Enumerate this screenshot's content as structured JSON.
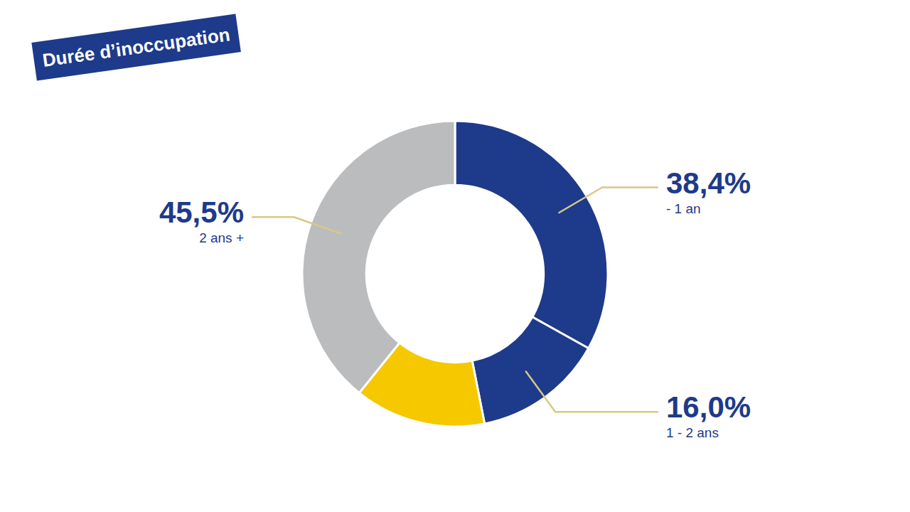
{
  "chart_data": {
    "type": "donut",
    "title": "Durée d’inoccupation",
    "categories": [
      "- 1 an",
      "1 - 2 ans",
      null,
      "2 ans +"
    ],
    "values": [
      38.4,
      16.0,
      16.1,
      45.5
    ],
    "value_labels": [
      "38,4%",
      "16,0%",
      null,
      "45,5%"
    ],
    "colors": [
      "#1e3a8a",
      "#1e3a8a",
      "#f5c800",
      "#bbbcbe"
    ],
    "data_labels": true
  }
}
